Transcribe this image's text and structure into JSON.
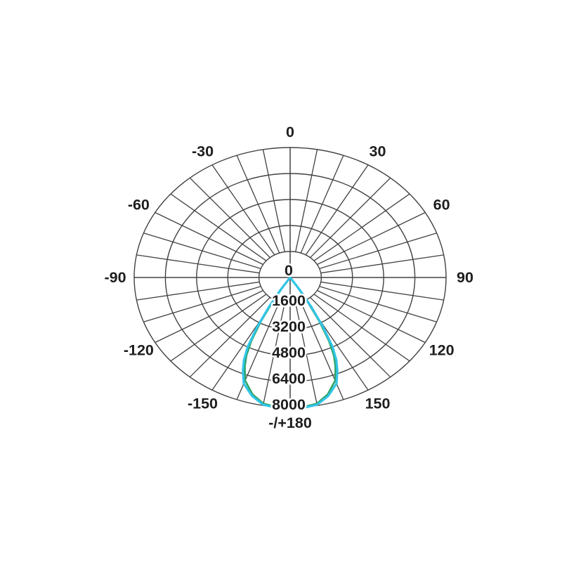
{
  "page": {
    "background": "#ffffff"
  },
  "chart_data": {
    "type": "polar",
    "subtype": "photometric-light-distribution",
    "title": "",
    "angular_axis": {
      "unit": "degrees",
      "zero_position": "bottom",
      "grid_step_deg": 10,
      "label_step_deg": 30,
      "labels": [
        {
          "angle_deg": 180,
          "text": "-/+180"
        },
        {
          "angle_deg": -150,
          "text": "-150"
        },
        {
          "angle_deg": -120,
          "text": "-120"
        },
        {
          "angle_deg": -90,
          "text": "-90"
        },
        {
          "angle_deg": -60,
          "text": "-60"
        },
        {
          "angle_deg": -30,
          "text": "-30"
        },
        {
          "angle_deg": 0,
          "text": "0"
        },
        {
          "angle_deg": 30,
          "text": "30"
        },
        {
          "angle_deg": 60,
          "text": "60"
        },
        {
          "angle_deg": 90,
          "text": "90"
        },
        {
          "angle_deg": 120,
          "text": "120"
        },
        {
          "angle_deg": 150,
          "text": "150"
        }
      ]
    },
    "radial_axis": {
      "min": 0,
      "max": 8000,
      "rings": [
        1600,
        3200,
        4800,
        6400,
        8000
      ],
      "tick_labels": [
        "0",
        "1600",
        "3200",
        "4800",
        "6400",
        "8000"
      ]
    },
    "series": [
      {
        "name": "series-green",
        "color": "#2ca463",
        "stroke_width": 2.6,
        "symmetric": true,
        "points_gamma_cd": [
          [
            0,
            8020
          ],
          [
            5,
            8000
          ],
          [
            10,
            7880
          ],
          [
            15,
            7450
          ],
          [
            20,
            6750
          ],
          [
            23,
            5950
          ],
          [
            25,
            5300
          ],
          [
            27,
            4400
          ],
          [
            29,
            3100
          ],
          [
            31,
            1700
          ],
          [
            33,
            500
          ],
          [
            34,
            0
          ]
        ]
      },
      {
        "name": "series-cyan",
        "color": "#31c4e7",
        "stroke_width": 3.2,
        "symmetric": true,
        "points_gamma_cd": [
          [
            0,
            8060
          ],
          [
            5,
            8050
          ],
          [
            10,
            7950
          ],
          [
            15,
            7550
          ],
          [
            20,
            6950
          ],
          [
            23,
            6200
          ],
          [
            25,
            5600
          ],
          [
            27,
            4800
          ],
          [
            29,
            3500
          ],
          [
            31,
            2100
          ],
          [
            33,
            900
          ],
          [
            34.5,
            0
          ]
        ]
      }
    ],
    "colors": {
      "grid": "#424242",
      "text": "#1e1e1e",
      "background": "#ffffff"
    },
    "legend": null
  }
}
